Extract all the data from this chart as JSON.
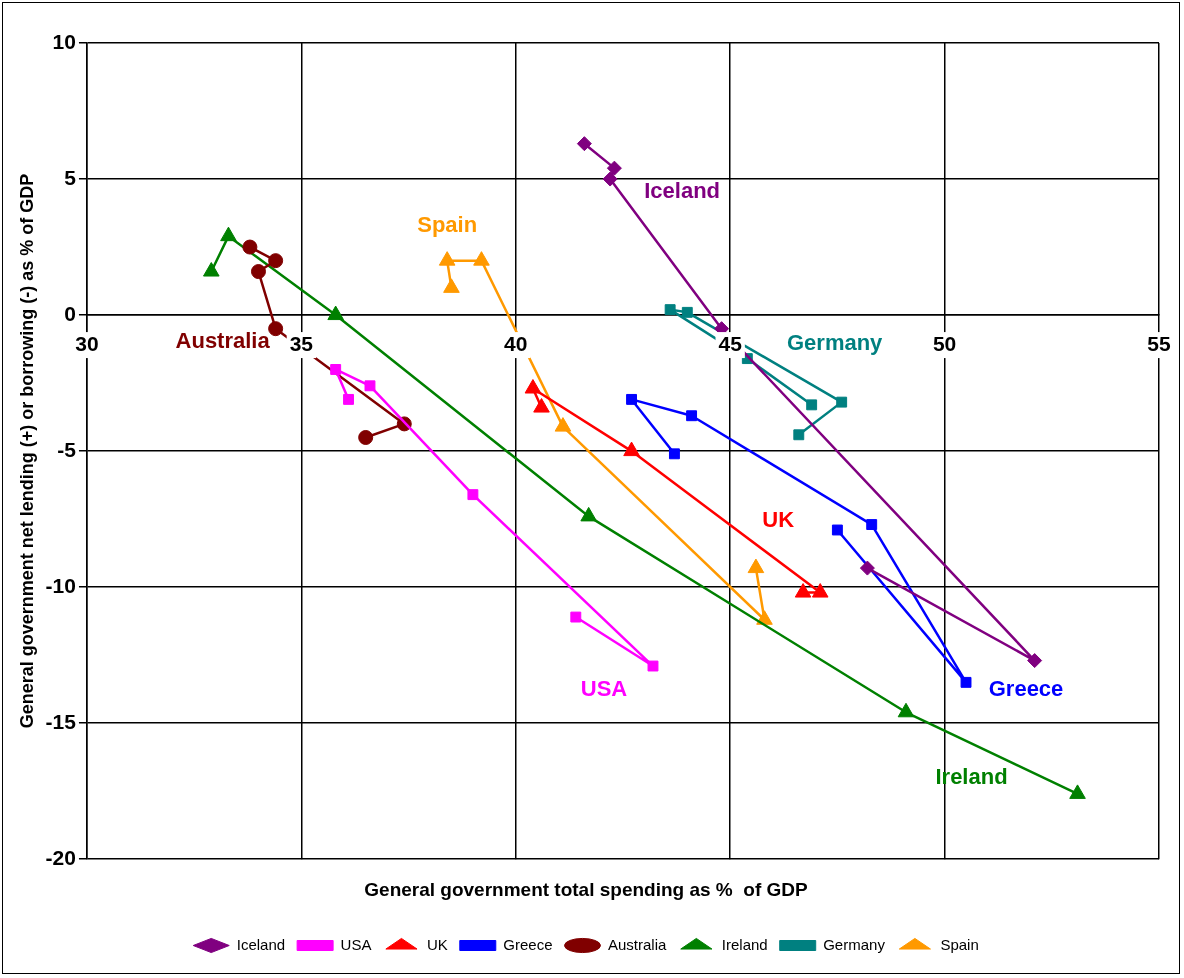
{
  "chart_data": {
    "type": "line",
    "xlabel": "General government total spending as %  of GDP",
    "ylabel": "General government net lending (+) or borrowing (-) as % of GDP",
    "xlim": [
      30,
      55
    ],
    "xticks": [
      30,
      35,
      40,
      45,
      50,
      55
    ],
    "ylim": [
      -20,
      10
    ],
    "yticks": [
      -20,
      -15,
      -10,
      -5,
      0,
      5,
      10
    ],
    "grid": true,
    "legend": "bottom",
    "line_style": "solid",
    "series": [
      {
        "name": "Iceland",
        "color": "#800080",
        "marker": "diamond",
        "x": [
          41.6,
          42.3,
          42.2,
          44.8,
          52.1,
          48.2
        ],
        "values": [
          6.3,
          5.4,
          5.0,
          -0.5,
          -12.7,
          -9.3
        ]
      },
      {
        "name": "USA",
        "color": "#ff00ff",
        "marker": "square",
        "x": [
          36.1,
          35.8,
          36.6,
          39.0,
          43.2,
          41.4
        ],
        "values": [
          -3.1,
          -2.0,
          -2.6,
          -6.6,
          -12.9,
          -11.1
        ]
      },
      {
        "name": "UK",
        "color": "#ff0000",
        "marker": "triangle",
        "x": [
          40.6,
          40.4,
          42.7,
          47.1,
          46.7
        ],
        "values": [
          -3.4,
          -2.7,
          -5.0,
          -10.2,
          -10.2
        ]
      },
      {
        "name": "Greece",
        "color": "#0000ff",
        "marker": "square",
        "x": [
          43.7,
          42.7,
          44.1,
          48.3,
          50.5,
          47.5
        ],
        "values": [
          -5.1,
          -3.1,
          -3.7,
          -7.7,
          -13.5,
          -7.9
        ]
      },
      {
        "name": "Australia",
        "color": "#800000",
        "marker": "circle",
        "x": [
          33.8,
          34.4,
          34.0,
          34.4,
          37.4,
          36.5
        ],
        "values": [
          2.5,
          2.0,
          1.6,
          -0.5,
          -4.0,
          -4.5
        ]
      },
      {
        "name": "Ireland",
        "color": "#008000",
        "marker": "triangle",
        "x": [
          32.9,
          33.3,
          35.8,
          41.7,
          49.1,
          53.1
        ],
        "values": [
          1.6,
          2.9,
          0.0,
          -7.4,
          -14.6,
          -17.6
        ]
      },
      {
        "name": "Germany",
        "color": "#008080",
        "marker": "square",
        "x": [
          46.9,
          45.4,
          43.6,
          44.0,
          47.6,
          46.6
        ],
        "values": [
          -3.3,
          -1.6,
          0.2,
          0.1,
          -3.2,
          -4.4
        ]
      },
      {
        "name": "Spain",
        "color": "#ff9900",
        "marker": "triangle",
        "x": [
          38.5,
          38.4,
          39.2,
          41.1,
          45.8,
          45.6
        ],
        "values": [
          1.0,
          2.0,
          2.0,
          -4.1,
          -11.2,
          -9.3
        ]
      }
    ]
  }
}
